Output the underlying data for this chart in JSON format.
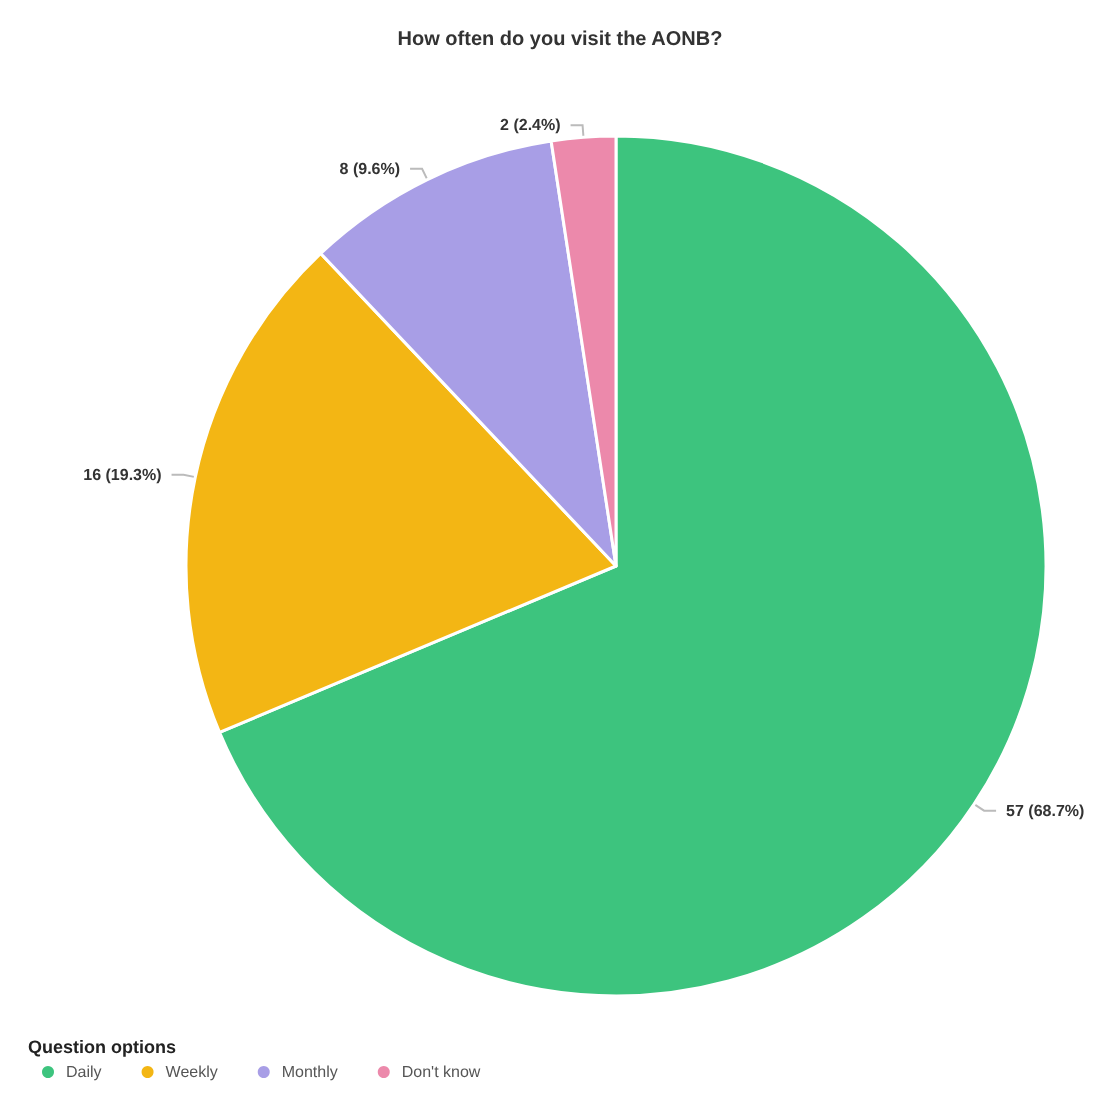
{
  "chart_data": {
    "type": "pie",
    "title": "How often do you visit the AONB?",
    "categories": [
      "Daily",
      "Weekly",
      "Monthly",
      "Don't know"
    ],
    "values": [
      57,
      16,
      8,
      2
    ],
    "value_labels": [
      "57 (68.7%)",
      "16 (19.3%)",
      "8 (9.6%)",
      "2 (2.4%)"
    ],
    "colors": [
      "#3dc47e",
      "#f3b614",
      "#a89ee6",
      "#ec89ab"
    ],
    "legend": "bottom left",
    "legend_title": "Question options"
  }
}
